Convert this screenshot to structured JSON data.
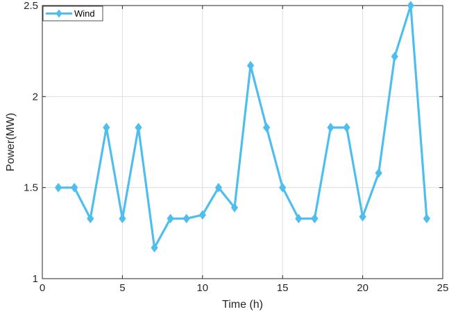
{
  "chart_data": {
    "type": "line",
    "xlabel": "Time (h)",
    "ylabel": "Power(MW)",
    "xlim": [
      0,
      25
    ],
    "ylim": [
      1,
      2.5
    ],
    "xticks": [
      0,
      5,
      10,
      15,
      20,
      25
    ],
    "yticks": [
      1,
      1.5,
      2,
      2.5
    ],
    "xtick_labels": [
      "0",
      "5",
      "10",
      "15",
      "20",
      "25"
    ],
    "ytick_labels": [
      "1",
      "1.5",
      "2",
      "2.5"
    ],
    "grid": true,
    "legend_position": "top-left",
    "series": [
      {
        "name": "Wind",
        "color": "#4DBEEE",
        "marker": "diamond",
        "x": [
          1,
          2,
          3,
          4,
          5,
          6,
          7,
          8,
          9,
          10,
          11,
          12,
          13,
          14,
          15,
          16,
          17,
          18,
          19,
          20,
          21,
          22,
          23,
          24
        ],
        "y": [
          1.5,
          1.5,
          1.33,
          1.83,
          1.33,
          1.83,
          1.17,
          1.33,
          1.33,
          1.35,
          1.5,
          1.39,
          2.17,
          1.83,
          1.5,
          1.33,
          1.33,
          1.83,
          1.83,
          1.34,
          1.58,
          2.22,
          2.5,
          1.33
        ]
      }
    ]
  }
}
